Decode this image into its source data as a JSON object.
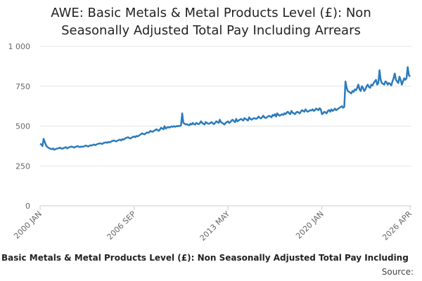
{
  "chart_data": {
    "type": "line",
    "title": "AWE: Basic Metals & Metal Products Level (£): Non Seasonally Adjusted Total Pay Including Arrears",
    "categories": [
      "2000 JAN",
      null,
      null,
      null,
      null,
      null,
      null,
      null,
      null,
      null,
      null,
      null,
      null,
      null,
      null,
      null,
      null,
      null,
      null,
      null,
      null,
      null,
      null,
      null,
      null,
      null,
      null,
      null,
      null,
      null,
      null,
      null,
      null,
      null,
      null,
      null,
      null,
      null,
      null,
      null,
      null,
      null,
      null,
      null,
      null,
      null,
      null,
      null,
      null,
      null,
      null,
      null,
      null,
      null,
      null,
      null,
      null,
      null,
      null,
      null,
      null,
      null,
      null,
      null,
      null,
      null,
      null,
      null,
      null,
      null,
      null,
      null,
      null,
      null,
      null,
      null,
      null,
      null,
      null,
      null,
      "2006 SEP",
      null,
      null,
      null,
      null,
      null,
      null,
      null,
      null,
      null,
      null,
      null,
      null,
      null,
      null,
      null,
      null,
      null,
      null,
      null,
      null,
      null,
      null,
      null,
      null,
      null,
      null,
      null,
      null,
      null,
      null,
      null,
      null,
      null,
      null,
      null,
      null,
      null,
      null,
      null,
      null,
      null,
      null,
      null,
      null,
      null,
      null,
      null,
      null,
      null,
      null,
      null,
      null,
      null,
      null,
      null,
      null,
      null,
      null,
      null,
      null,
      null,
      null,
      null,
      null,
      null,
      null,
      null,
      null,
      null,
      null,
      null,
      null,
      null,
      null,
      null,
      null,
      null,
      null,
      null,
      "2013 MAY",
      null,
      null,
      null,
      null,
      null,
      null,
      null,
      null,
      null,
      null,
      null,
      null,
      null,
      null,
      null,
      null,
      null,
      null,
      null,
      null,
      null,
      null,
      null,
      null,
      null,
      null,
      null,
      null,
      null,
      null,
      null,
      null,
      null,
      null,
      null,
      null,
      null,
      null,
      null,
      null,
      null,
      null,
      null,
      null,
      null,
      null,
      null,
      null,
      null,
      null,
      null,
      null,
      null,
      null,
      null,
      null,
      null,
      null,
      null,
      null,
      null,
      null,
      null,
      null,
      null,
      null,
      null,
      null,
      null,
      null,
      null,
      null,
      null,
      null,
      null,
      null,
      null,
      null,
      null,
      "2020 JAN",
      null,
      null,
      null,
      null,
      null,
      null,
      null,
      null,
      null,
      null,
      null,
      null,
      null,
      null,
      null,
      null,
      null,
      null,
      null,
      null,
      null,
      null,
      null,
      null,
      null,
      null,
      null,
      null,
      null,
      null,
      null,
      null,
      null,
      null,
      null,
      null,
      null,
      null,
      null,
      null,
      null,
      null,
      null,
      null,
      null,
      null,
      null,
      null,
      null,
      null,
      null,
      null,
      null,
      null,
      null,
      null,
      null,
      null,
      null,
      null,
      null,
      null,
      null,
      null,
      null,
      null,
      null,
      null,
      null,
      null,
      null,
      null,
      null,
      null,
      "2026 APR"
    ],
    "series": [
      {
        "name": "Basic Metals & Metal Products Level (£): Non Seasonally Adjusted Total Pay Including",
        "color": "#2b7bbd",
        "values": [
          390,
          385,
          375,
          420,
          400,
          380,
          370,
          365,
          360,
          358,
          355,
          360,
          352,
          355,
          358,
          360,
          362,
          365,
          360,
          358,
          362,
          365,
          368,
          360,
          365,
          368,
          370,
          372,
          368,
          365,
          370,
          372,
          375,
          370,
          368,
          372,
          370,
          372,
          375,
          378,
          375,
          372,
          376,
          380,
          378,
          382,
          385,
          380,
          385,
          388,
          390,
          392,
          390,
          388,
          394,
          396,
          398,
          395,
          400,
          398,
          400,
          405,
          408,
          410,
          406,
          404,
          410,
          412,
          415,
          410,
          418,
          415,
          420,
          425,
          428,
          430,
          425,
          422,
          428,
          432,
          435,
          430,
          438,
          435,
          440,
          445,
          450,
          455,
          450,
          448,
          455,
          460,
          458,
          462,
          470,
          465,
          465,
          470,
          475,
          480,
          475,
          470,
          478,
          490,
          485,
          480,
          500,
          485,
          490,
          495,
          490,
          495,
          498,
          495,
          500,
          495,
          500,
          498,
          502,
          500,
          505,
          580,
          520,
          515,
          510,
          512,
          508,
          505,
          515,
          510,
          520,
          512,
          510,
          520,
          515,
          512,
          518,
          530,
          520,
          515,
          510,
          525,
          520,
          515,
          515,
          520,
          525,
          518,
          512,
          520,
          530,
          525,
          520,
          540,
          525,
          520,
          515,
          510,
          520,
          525,
          530,
          520,
          525,
          535,
          540,
          530,
          525,
          545,
          530,
          535,
          540,
          545,
          540,
          535,
          550,
          545,
          540,
          535,
          555,
          545,
          540,
          545,
          550,
          548,
          545,
          550,
          560,
          552,
          548,
          555,
          565,
          555,
          550,
          555,
          560,
          565,
          560,
          555,
          570,
          565,
          575,
          560,
          580,
          570,
          565,
          570,
          575,
          570,
          580,
          575,
          585,
          590,
          580,
          575,
          595,
          585,
          580,
          575,
          585,
          590,
          585,
          580,
          590,
          600,
          595,
          590,
          605,
          595,
          590,
          595,
          600,
          598,
          605,
          595,
          600,
          610,
          605,
          600,
          612,
          605,
          575,
          580,
          590,
          585,
          580,
          595,
          600,
          590,
          605,
          595,
          600,
          610,
          600,
          605,
          610,
          615,
          620,
          625,
          615,
          620,
          780,
          740,
          720,
          715,
          710,
          705,
          720,
          715,
          730,
          725,
          740,
          760,
          730,
          720,
          750,
          740,
          720,
          730,
          750,
          760,
          745,
          740,
          760,
          755,
          770,
          780,
          790,
          760,
          770,
          850,
          790,
          770,
          765,
          760,
          780,
          775,
          760,
          770,
          765,
          755,
          780,
          800,
          830,
          790,
          780,
          770,
          810,
          790,
          760,
          780,
          800,
          790,
          800,
          870,
          820,
          810
        ]
      }
    ],
    "ylim": [
      0,
      1000
    ],
    "yticks": [
      0,
      250,
      500,
      750,
      {
        "value": 1000,
        "label": "1 000"
      }
    ],
    "grid": true,
    "source": "Source:"
  }
}
